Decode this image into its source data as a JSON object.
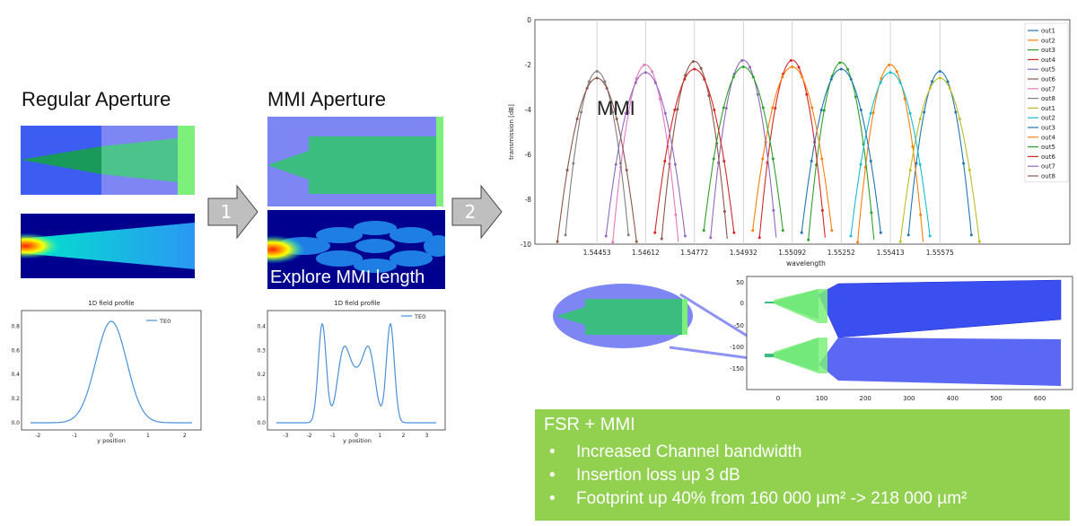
{
  "left_panel": {
    "heading": "Regular Aperture"
  },
  "mid_panel": {
    "heading": "MMI Aperture",
    "overlay": "Explore MMI length"
  },
  "arrows": [
    {
      "label": "1"
    },
    {
      "label": "2"
    }
  ],
  "profile_left": {
    "title": "1D field profile",
    "xlabel": "y position",
    "legend": "TE0",
    "xticks": [
      "-2",
      "-1",
      "0",
      "1",
      "2"
    ],
    "yticks": [
      "0.0",
      "0.2",
      "0.4",
      "0.6",
      "0.8"
    ]
  },
  "profile_mid": {
    "title": "1D field profile",
    "xlabel": "y position",
    "legend": "TE0",
    "xticks": [
      "-3",
      "-2",
      "-1",
      "0",
      "1",
      "2",
      "3"
    ],
    "yticks": [
      "0.0",
      "0.1",
      "0.2",
      "0.3",
      "0.4"
    ]
  },
  "mmi_label": "MMI",
  "layout_plot": {
    "yticks": [
      "50",
      "0",
      "-50",
      "-100",
      "-150"
    ],
    "xticks": [
      "0",
      "100",
      "200",
      "300",
      "400",
      "500",
      "600"
    ]
  },
  "summary": {
    "title": "FSR + MMI",
    "items": [
      "Increased Channel bandwidth",
      "Insertion loss up 3 dB",
      "Footprint up 40% from 160 000 µm² -> 218 000 µm²"
    ]
  },
  "colors": {
    "summary_bg": "#92d050",
    "arrow": "#bfbfbf"
  },
  "chart_data": [
    {
      "type": "line",
      "title": "",
      "xlabel": "wavelength",
      "ylabel": "transmission [dB]",
      "ylim": [
        -10,
        0
      ],
      "yticks": [
        "0",
        "-2",
        "-4",
        "-6",
        "-8",
        "-10"
      ],
      "xticks": [
        "1.54453",
        "1.54612",
        "1.54772",
        "1.54932",
        "1.55092",
        "1.55252",
        "1.55413",
        "1.55575"
      ],
      "legend_position": "top-right",
      "grid": "vertical lines at channel centers",
      "legend": [
        "out1",
        "out2",
        "out3",
        "out4",
        "out5",
        "out6",
        "out7",
        "out8",
        "out1",
        "out2",
        "out3",
        "out4",
        "out5",
        "out6",
        "out7",
        "out8"
      ],
      "series": [
        {
          "name": "out1",
          "color": "#1f77b4",
          "center": 1.55575,
          "peak": -2.3
        },
        {
          "name": "out2",
          "color": "#ff7f0e",
          "center": 1.55413,
          "peak": -2.0
        },
        {
          "name": "out3",
          "color": "#2ca02c",
          "center": 1.55252,
          "peak": -1.9
        },
        {
          "name": "out4",
          "color": "#d62728",
          "center": 1.55092,
          "peak": -1.8
        },
        {
          "name": "out5",
          "color": "#9467bd",
          "center": 1.54932,
          "peak": -1.8
        },
        {
          "name": "out6",
          "color": "#8c564b",
          "center": 1.54772,
          "peak": -1.85
        },
        {
          "name": "out7",
          "color": "#e377c2",
          "center": 1.54612,
          "peak": -2.0
        },
        {
          "name": "out8",
          "color": "#7f7f7f",
          "center": 1.54453,
          "peak": -2.3
        },
        {
          "name": "out1",
          "color": "#bcbd22",
          "center": 1.55575,
          "peak": -2.6
        },
        {
          "name": "out2",
          "color": "#17becf",
          "center": 1.55413,
          "peak": -2.35
        },
        {
          "name": "out3",
          "color": "#1f77b4",
          "center": 1.55252,
          "peak": -2.2
        },
        {
          "name": "out4",
          "color": "#ff7f0e",
          "center": 1.55092,
          "peak": -2.1
        },
        {
          "name": "out5",
          "color": "#2ca02c",
          "center": 1.54932,
          "peak": -2.1
        },
        {
          "name": "out6",
          "color": "#d62728",
          "center": 1.54772,
          "peak": -2.2
        },
        {
          "name": "out7",
          "color": "#9467bd",
          "center": 1.54612,
          "peak": -2.35
        },
        {
          "name": "out8",
          "color": "#8c564b",
          "center": 1.54453,
          "peak": -2.6
        }
      ]
    }
  ]
}
